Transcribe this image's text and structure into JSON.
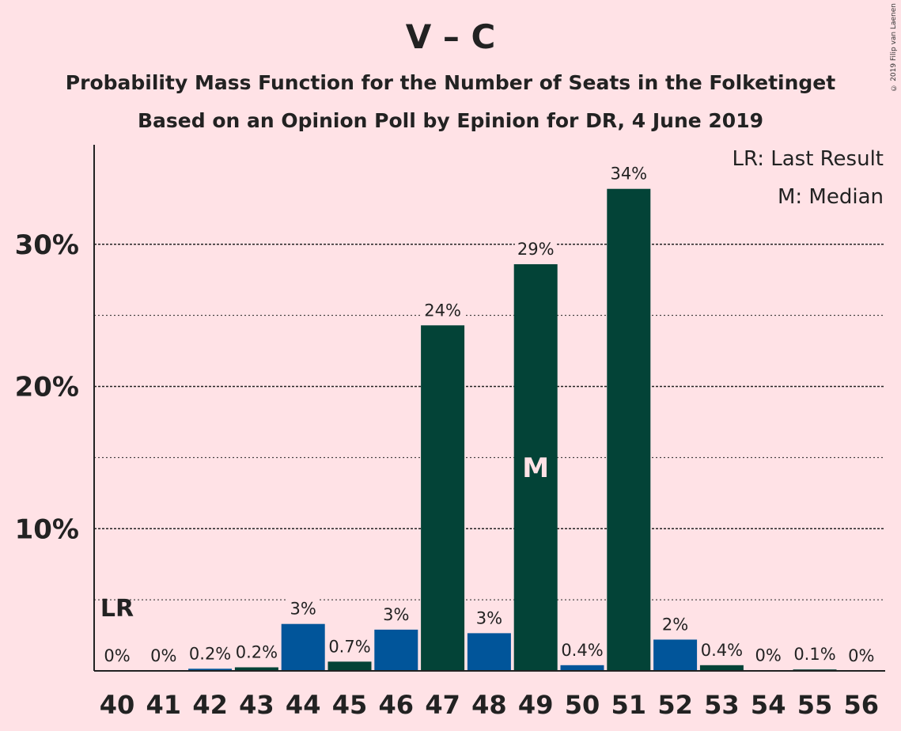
{
  "chart_data": {
    "type": "bar",
    "title": "V – C",
    "subtitle": "Probability Mass Function for the Number of Seats in the Folketinget",
    "subtitle2": "Based on an Opinion Poll by Epinion for DR, 4 June 2019",
    "copyright": "© 2019 Filip van Laenen",
    "categories": [
      "40",
      "41",
      "42",
      "43",
      "44",
      "45",
      "46",
      "47",
      "48",
      "49",
      "50",
      "51",
      "52",
      "53",
      "54",
      "55",
      "56"
    ],
    "values": [
      0,
      0,
      0.15,
      0.25,
      3.3,
      0.65,
      2.9,
      24.3,
      2.65,
      28.6,
      0.4,
      33.9,
      2.2,
      0.4,
      0.02,
      0.1,
      0
    ],
    "value_labels": [
      "0%",
      "0%",
      "0.2%",
      "0.2%",
      "3%",
      "0.7%",
      "3%",
      "24%",
      "3%",
      "29%",
      "0.4%",
      "34%",
      "2%",
      "0.4%",
      "0%",
      "0.1%",
      "0%"
    ],
    "bar_colors": [
      "#01559A",
      "#034337",
      "#01559A",
      "#034337",
      "#01559A",
      "#034337",
      "#01559A",
      "#034337",
      "#01559A",
      "#034337",
      "#01559A",
      "#034337",
      "#01559A",
      "#034337",
      "#01559A",
      "#034337",
      "#01559A"
    ],
    "ylim": [
      0,
      37
    ],
    "y_ticks": [
      10,
      20,
      30
    ],
    "y_tick_labels": [
      "10%",
      "20%",
      "30%"
    ],
    "minor_gridlines": [
      5,
      15,
      25
    ],
    "grid": true,
    "last_result": {
      "category": "40",
      "label": "LR"
    },
    "median": {
      "category": "49",
      "label": "M"
    },
    "legend": {
      "placement": "top-right",
      "entries": [
        "LR: Last Result",
        "M: Median"
      ]
    }
  }
}
